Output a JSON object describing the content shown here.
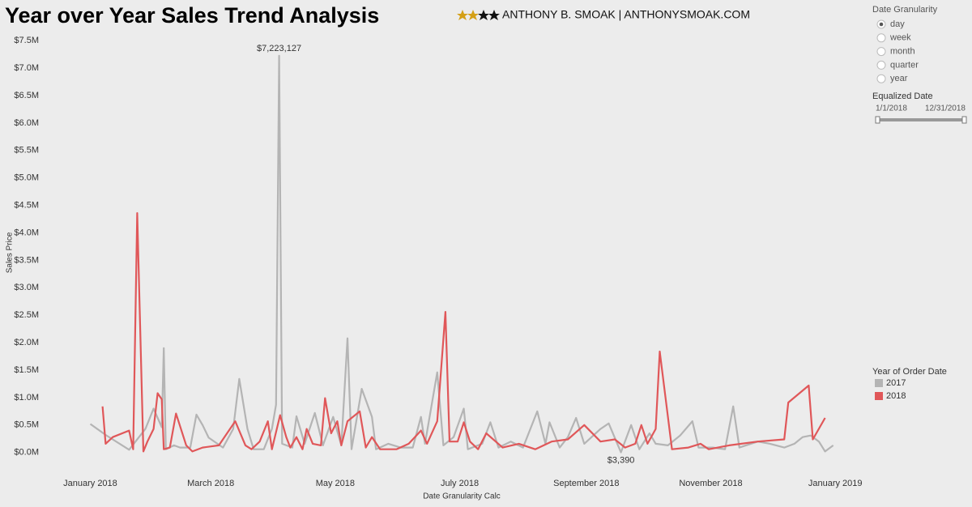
{
  "chart_data": {
    "type": "line",
    "title": "Year over Year Sales Trend Analysis",
    "subtitle": "ANTHONY B. SMOAK | ANTHONYSMOAK.COM",
    "x_label": "Date Granularity Calc",
    "y_label": "Sales Price",
    "legend_title": "Year of Order Date",
    "grid": false,
    "xlim": [
      -24,
      380
    ],
    "xticks": [
      {
        "value": 0,
        "label": "January 2018"
      },
      {
        "value": 59,
        "label": "March 2018"
      },
      {
        "value": 120,
        "label": "May 2018"
      },
      {
        "value": 181,
        "label": "July 2018"
      },
      {
        "value": 243,
        "label": "September 2018"
      },
      {
        "value": 304,
        "label": "November 2018"
      },
      {
        "value": 365,
        "label": "January 2019"
      }
    ],
    "ylim": [
      -240000,
      7650000
    ],
    "yticks": [
      {
        "value": 0,
        "label": "$0.0M"
      },
      {
        "value": 500000,
        "label": "$0.5M"
      },
      {
        "value": 1000000,
        "label": "$1.0M"
      },
      {
        "value": 1500000,
        "label": "$1.5M"
      },
      {
        "value": 2000000,
        "label": "$2.0M"
      },
      {
        "value": 2500000,
        "label": "$2.5M"
      },
      {
        "value": 3000000,
        "label": "$3.0M"
      },
      {
        "value": 3500000,
        "label": "$3.5M"
      },
      {
        "value": 4000000,
        "label": "$4.0M"
      },
      {
        "value": 4500000,
        "label": "$4.5M"
      },
      {
        "value": 5000000,
        "label": "$5.0M"
      },
      {
        "value": 5500000,
        "label": "$5.5M"
      },
      {
        "value": 6000000,
        "label": "$6.0M"
      },
      {
        "value": 6500000,
        "label": "$6.5M"
      },
      {
        "value": 7000000,
        "label": "$7.0M"
      },
      {
        "value": 7500000,
        "label": "$7.5M"
      }
    ],
    "series": [
      {
        "name": "2017",
        "color": "#b4b4b4",
        "x": [
          0,
          7.5,
          19,
          27,
          31,
          35,
          36,
          37,
          41,
          44,
          49,
          52,
          55,
          58,
          65,
          70,
          73,
          77,
          80,
          85,
          89,
          91,
          92.5,
          94,
          99,
          101,
          105,
          110,
          114,
          119,
          123,
          126,
          128,
          133,
          138,
          140,
          146,
          152,
          158,
          162,
          164,
          170,
          173,
          178,
          183,
          185,
          192,
          196,
          200,
          206,
          212,
          219,
          223,
          225,
          230,
          234,
          238,
          242,
          250,
          254,
          260,
          265,
          269,
          274,
          277,
          283,
          289,
          295,
          298,
          305,
          311,
          315,
          318,
          327,
          333,
          340,
          345,
          349,
          353,
          357,
          360,
          364
        ],
        "values": [
          520000,
          320000,
          50000,
          430000,
          800000,
          460000,
          1900000,
          60000,
          130000,
          90000,
          90000,
          690000,
          500000,
          270000,
          90000,
          430000,
          1340000,
          430000,
          60000,
          60000,
          430000,
          870000,
          7223127,
          160000,
          90000,
          660000,
          160000,
          720000,
          130000,
          650000,
          130000,
          2080000,
          60000,
          1160000,
          650000,
          60000,
          160000,
          90000,
          90000,
          650000,
          160000,
          1460000,
          130000,
          280000,
          800000,
          60000,
          160000,
          550000,
          90000,
          200000,
          90000,
          750000,
          160000,
          550000,
          90000,
          280000,
          630000,
          160000,
          430000,
          530000,
          3390,
          500000,
          60000,
          350000,
          160000,
          130000,
          310000,
          570000,
          90000,
          90000,
          60000,
          840000,
          90000,
          200000,
          160000,
          90000,
          160000,
          280000,
          310000,
          200000,
          20000,
          130000
        ],
        "value_labels": [
          null,
          null,
          null,
          null,
          null,
          null,
          null,
          null,
          null,
          null,
          null,
          null,
          null,
          null,
          null,
          null,
          null,
          null,
          null,
          null,
          null,
          null,
          "$7,223,127",
          null,
          null,
          null,
          null,
          null,
          null,
          null,
          null,
          null,
          null,
          null,
          null,
          null,
          null,
          null,
          null,
          null,
          null,
          null,
          null,
          null,
          null,
          null,
          null,
          null,
          null,
          null,
          null,
          null,
          null,
          null,
          null,
          null,
          null,
          null,
          null,
          null,
          "$3,390",
          null,
          null,
          null,
          null,
          null,
          null,
          null,
          null,
          null,
          null,
          null,
          null,
          null,
          null,
          null,
          null,
          null,
          null,
          null,
          null,
          null
        ]
      },
      {
        "name": "2018",
        "color": "#e05759",
        "x": [
          6,
          7.5,
          11,
          19,
          21,
          23,
          26,
          28,
          31,
          33,
          35,
          36,
          39,
          42,
          47,
          50,
          55,
          63,
          71,
          76,
          79,
          83,
          87,
          89,
          93,
          96,
          98,
          101,
          104,
          106,
          109,
          113,
          115,
          118,
          121,
          123,
          126,
          132,
          135,
          138,
          142,
          150,
          156,
          162,
          165,
          170,
          174,
          176,
          180,
          183,
          186,
          190,
          194,
          202,
          210,
          218,
          226,
          234,
          242,
          250,
          257,
          262,
          267,
          270,
          273,
          277,
          279,
          285,
          293,
          299,
          303,
          313,
          327,
          340,
          342,
          352,
          354,
          360
        ],
        "values": [
          840000,
          160000,
          280000,
          400000,
          60000,
          4360000,
          20000,
          200000,
          430000,
          1080000,
          970000,
          60000,
          90000,
          710000,
          130000,
          20000,
          90000,
          130000,
          570000,
          130000,
          60000,
          200000,
          570000,
          60000,
          680000,
          280000,
          90000,
          280000,
          60000,
          430000,
          160000,
          130000,
          990000,
          350000,
          570000,
          130000,
          570000,
          750000,
          90000,
          280000,
          60000,
          60000,
          160000,
          400000,
          160000,
          570000,
          2560000,
          200000,
          200000,
          550000,
          200000,
          60000,
          350000,
          90000,
          160000,
          60000,
          200000,
          240000,
          500000,
          200000,
          240000,
          90000,
          160000,
          500000,
          160000,
          430000,
          1840000,
          60000,
          90000,
          160000,
          60000,
          130000,
          200000,
          240000,
          910000,
          1220000,
          240000,
          630000
        ]
      }
    ]
  },
  "controls": {
    "date_granularity": {
      "title": "Date Granularity",
      "options": [
        "day",
        "week",
        "month",
        "quarter",
        "year"
      ],
      "selected": "day"
    },
    "equalized_date": {
      "title": "Equalized Date",
      "start": "1/1/2018",
      "end": "12/31/2018"
    }
  }
}
